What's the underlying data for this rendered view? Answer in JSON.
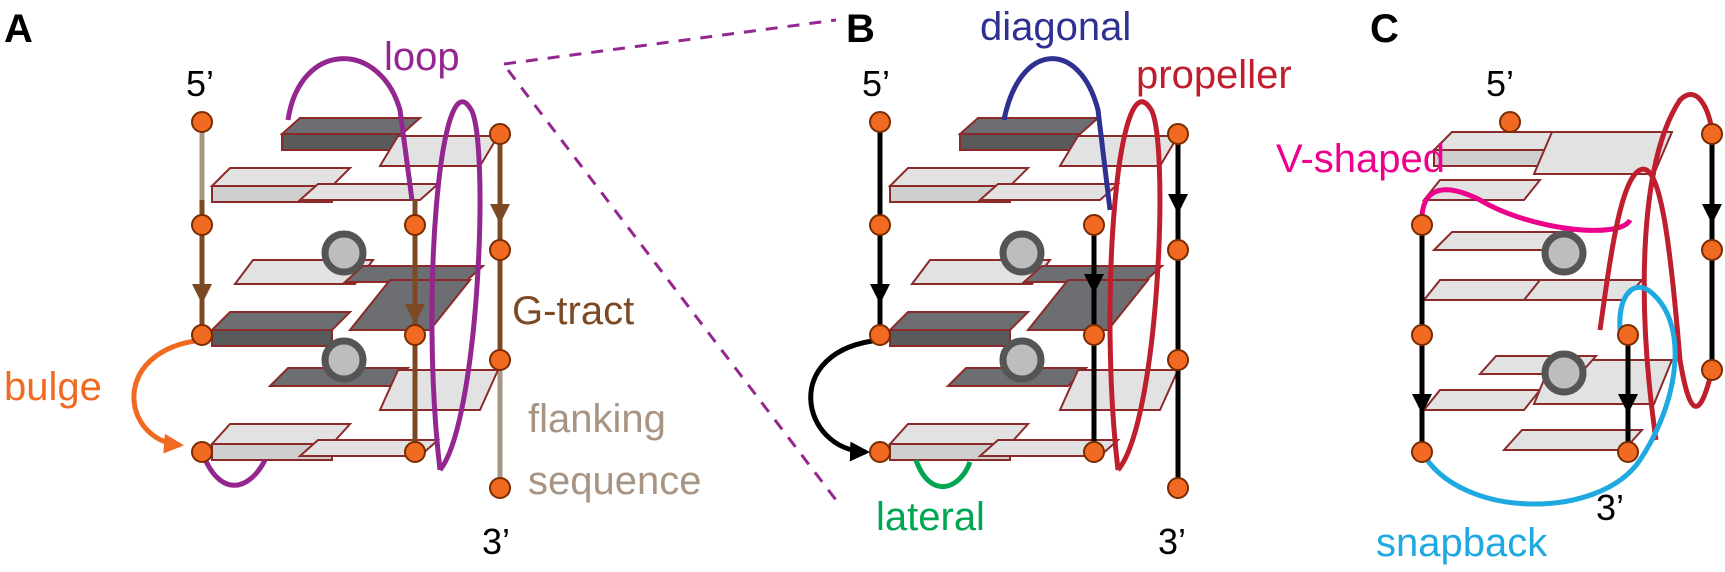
{
  "panels": {
    "a": {
      "label": "A",
      "five_prime": "5’",
      "three_prime": "3’",
      "loop": "loop",
      "gtract": "G-tract",
      "bulge": "bulge",
      "flanking_1": "flanking",
      "flanking_2": "sequence"
    },
    "b": {
      "label": "B",
      "five_prime": "5’",
      "three_prime": "3’",
      "diagonal": "diagonal",
      "propeller": "propeller",
      "lateral": "lateral"
    },
    "c": {
      "label": "C",
      "five_prime": "5’",
      "three_prime": "3’",
      "vshaped": "V-shaped",
      "snapback": "snapback"
    }
  },
  "colors": {
    "loop": "#93278f",
    "gtract": "#7b4a24",
    "bulge": "#f06a22",
    "flanking": "#a89483",
    "diagonal": "#2e3192",
    "propeller": "#be1e2d",
    "lateral": "#00a651",
    "vshaped": "#ec008c",
    "snapback": "#1fa9e1",
    "strand": "#000000",
    "node": "#f06a22",
    "slab_light": "#e2e2e2",
    "slab_dark": "#6d6e71",
    "slab_edge": "#8c2a2a",
    "ion": "#bdbdbd",
    "ion_ring": "#555555"
  }
}
